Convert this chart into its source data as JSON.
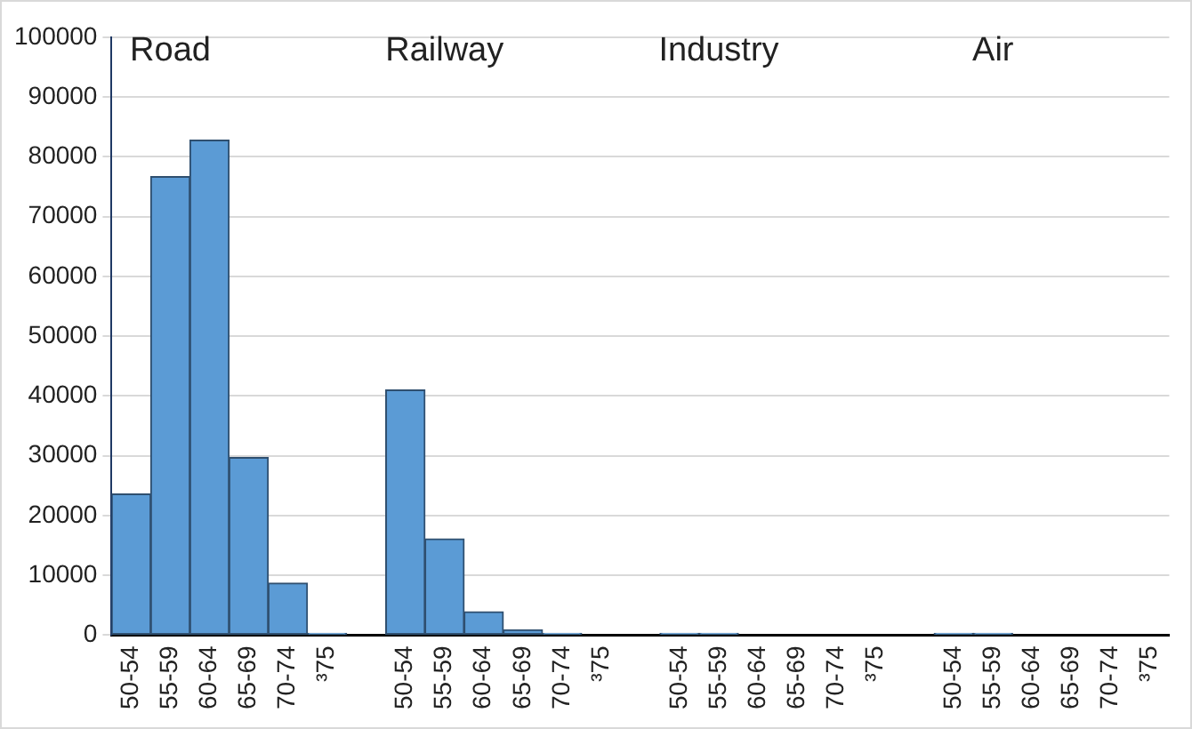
{
  "chart_data": {
    "type": "bar",
    "categories": [
      "50-54",
      "55-59",
      "60-64",
      "65-69",
      "70-74",
      "³75",
      null,
      "50-54",
      "55-59",
      "60-64",
      "65-69",
      "70-74",
      "³75",
      null,
      "50-54",
      "55-59",
      "60-64",
      "65-69",
      "70-74",
      "³75",
      null,
      "50-54",
      "55-59",
      "60-64",
      "65-69",
      "70-74",
      "³75"
    ],
    "values": [
      23600,
      76700,
      82800,
      29700,
      8700,
      300,
      null,
      41000,
      16100,
      3900,
      900,
      300,
      0,
      null,
      300,
      300,
      0,
      0,
      0,
      0,
      null,
      300,
      300,
      0,
      0,
      0,
      0
    ],
    "color": "#5b9bd5",
    "annotations": [
      "Road",
      "Railway",
      "Industry",
      "Air"
    ],
    "ylim": [
      0,
      100000
    ],
    "yticks": [
      0,
      10000,
      20000,
      30000,
      40000,
      50000,
      60000,
      70000,
      80000,
      90000,
      100000
    ],
    "grid": "y",
    "legend": false
  }
}
